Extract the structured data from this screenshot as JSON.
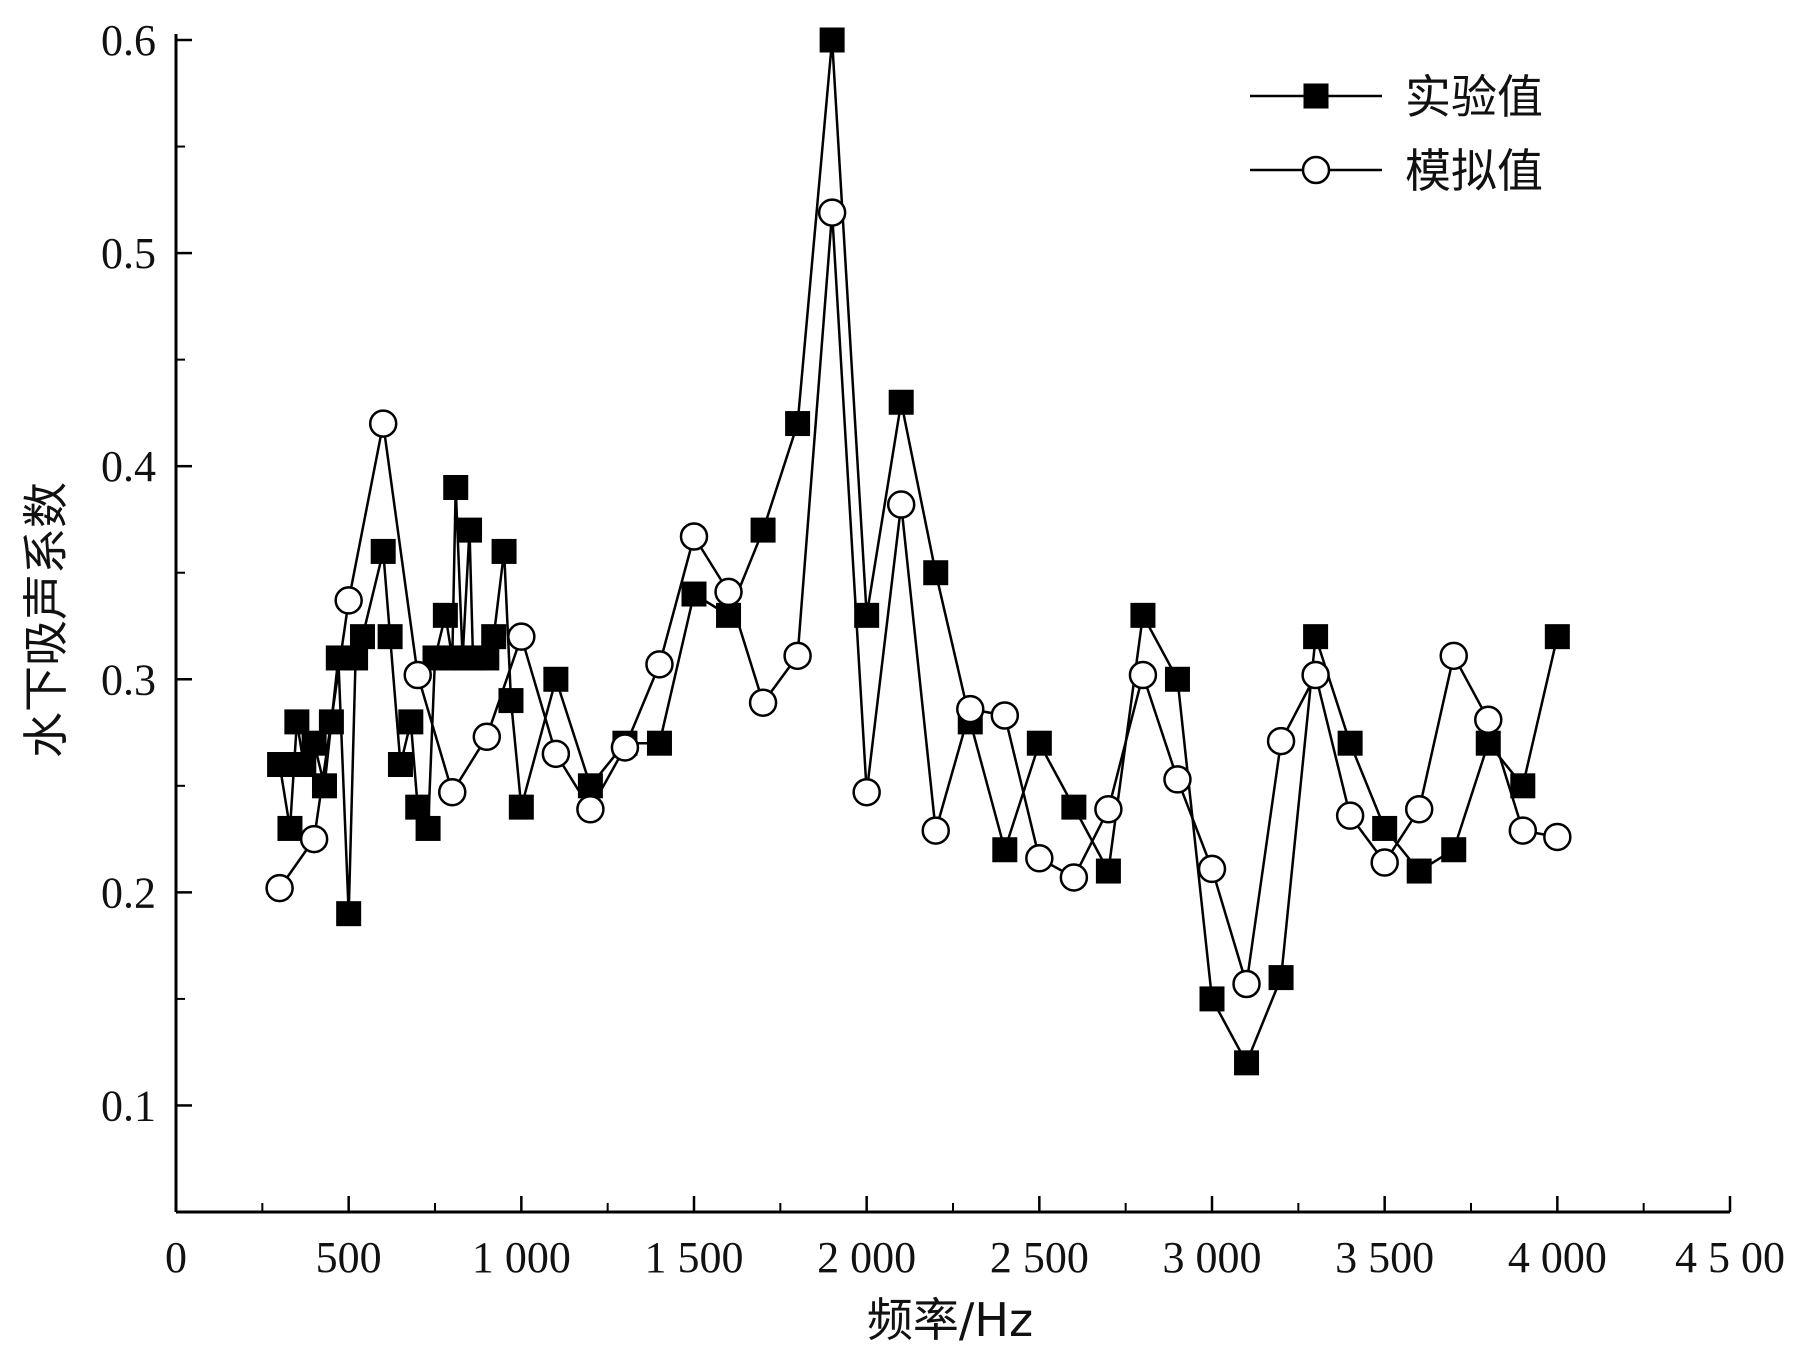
{
  "chart_data": {
    "type": "line",
    "title": "",
    "xlabel": "频率/Hz",
    "ylabel": "水下吸声系数",
    "xlim": [
      0,
      4500
    ],
    "ylim": [
      0.05,
      0.6
    ],
    "x_ticks": [
      0,
      500,
      1000,
      1500,
      2000,
      2500,
      3000,
      3500,
      4000,
      4500
    ],
    "x_tick_labels": [
      "0",
      "500",
      "1 000",
      "1 500",
      "2 000",
      "2 500",
      "3 000",
      "3 500",
      "4 000",
      "4 5 00"
    ],
    "y_ticks": [
      0.1,
      0.2,
      0.3,
      0.4,
      0.5,
      0.6
    ],
    "y_tick_labels": [
      "0.1",
      "0.2",
      "0.3",
      "0.4",
      "0.5",
      "0.6"
    ],
    "grid": false,
    "legend": "top-right",
    "series": [
      {
        "name": "实验值",
        "marker": "filled-square",
        "color": "#000000",
        "points": [
          [
            300,
            0.26
          ],
          [
            330,
            0.23
          ],
          [
            350,
            0.28
          ],
          [
            370,
            0.26
          ],
          [
            400,
            0.27
          ],
          [
            430,
            0.25
          ],
          [
            450,
            0.28
          ],
          [
            470,
            0.31
          ],
          [
            500,
            0.19
          ],
          [
            520,
            0.31
          ],
          [
            540,
            0.32
          ],
          [
            600,
            0.36
          ],
          [
            620,
            0.32
          ],
          [
            650,
            0.26
          ],
          [
            680,
            0.28
          ],
          [
            700,
            0.24
          ],
          [
            730,
            0.23
          ],
          [
            750,
            0.31
          ],
          [
            780,
            0.33
          ],
          [
            800,
            0.31
          ],
          [
            810,
            0.39
          ],
          [
            830,
            0.31
          ],
          [
            850,
            0.37
          ],
          [
            860,
            0.31
          ],
          [
            900,
            0.31
          ],
          [
            920,
            0.32
          ],
          [
            950,
            0.36
          ],
          [
            970,
            0.29
          ],
          [
            1000,
            0.24
          ],
          [
            1100,
            0.3
          ],
          [
            1200,
            0.25
          ],
          [
            1300,
            0.27
          ],
          [
            1400,
            0.27
          ],
          [
            1500,
            0.34
          ],
          [
            1600,
            0.33
          ],
          [
            1700,
            0.37
          ],
          [
            1800,
            0.42
          ],
          [
            1900,
            0.6
          ],
          [
            2000,
            0.33
          ],
          [
            2100,
            0.43
          ],
          [
            2200,
            0.35
          ],
          [
            2300,
            0.28
          ],
          [
            2400,
            0.22
          ],
          [
            2500,
            0.27
          ],
          [
            2600,
            0.24
          ],
          [
            2700,
            0.21
          ],
          [
            2800,
            0.33
          ],
          [
            2900,
            0.3
          ],
          [
            3000,
            0.15
          ],
          [
            3100,
            0.12
          ],
          [
            3200,
            0.16
          ],
          [
            3300,
            0.32
          ],
          [
            3400,
            0.27
          ],
          [
            3500,
            0.23
          ],
          [
            3600,
            0.21
          ],
          [
            3700,
            0.22
          ],
          [
            3800,
            0.27
          ],
          [
            3900,
            0.25
          ],
          [
            4000,
            0.32
          ]
        ]
      },
      {
        "name": "模拟值",
        "marker": "open-circle",
        "color": "#000000",
        "points": [
          [
            300,
            0.202
          ],
          [
            400,
            0.225
          ],
          [
            500,
            0.337
          ],
          [
            600,
            0.42
          ],
          [
            700,
            0.302
          ],
          [
            800,
            0.247
          ],
          [
            900,
            0.273
          ],
          [
            1000,
            0.32
          ],
          [
            1100,
            0.265
          ],
          [
            1200,
            0.239
          ],
          [
            1300,
            0.268
          ],
          [
            1400,
            0.307
          ],
          [
            1500,
            0.367
          ],
          [
            1600,
            0.341
          ],
          [
            1700,
            0.289
          ],
          [
            1800,
            0.311
          ],
          [
            1900,
            0.519
          ],
          [
            2000,
            0.247
          ],
          [
            2100,
            0.382
          ],
          [
            2200,
            0.229
          ],
          [
            2300,
            0.286
          ],
          [
            2400,
            0.283
          ],
          [
            2500,
            0.216
          ],
          [
            2600,
            0.207
          ],
          [
            2700,
            0.239
          ],
          [
            2800,
            0.302
          ],
          [
            2900,
            0.253
          ],
          [
            3000,
            0.211
          ],
          [
            3100,
            0.157
          ],
          [
            3200,
            0.271
          ],
          [
            3300,
            0.302
          ],
          [
            3400,
            0.236
          ],
          [
            3500,
            0.214
          ],
          [
            3600,
            0.239
          ],
          [
            3700,
            0.311
          ],
          [
            3800,
            0.281
          ],
          [
            3900,
            0.229
          ],
          [
            4000,
            0.226
          ]
        ]
      }
    ]
  }
}
